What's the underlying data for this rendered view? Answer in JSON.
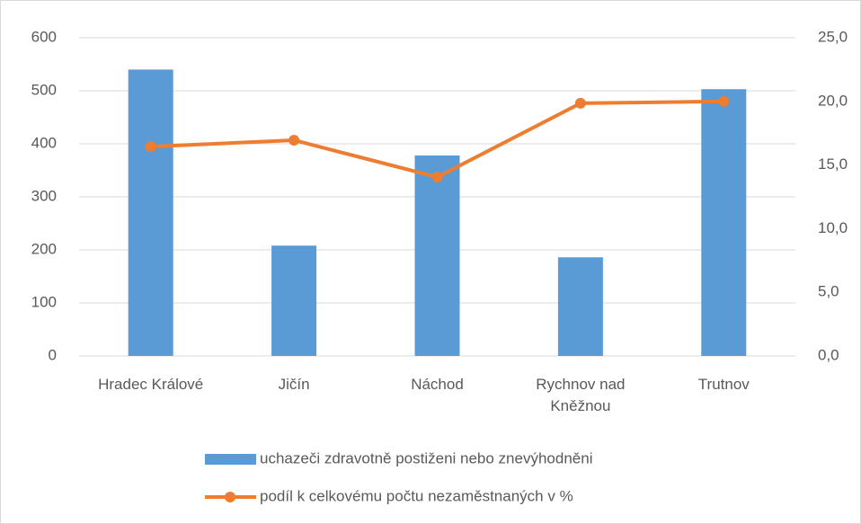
{
  "chart_data": {
    "type": "bar_line",
    "categories": [
      "Hradec Králové",
      "Jičín",
      "Náchod",
      "Rychnov nad Kněžnou",
      "Trutnov"
    ],
    "series": [
      {
        "name": "uchazeči zdravotně postiženi nebo znevýhodněni",
        "color": "#5b9bd5",
        "type": "bar",
        "values": [
          540,
          208,
          378,
          186,
          503
        ]
      },
      {
        "name": "podíl k celkovému počtu nezaměstnaných v %",
        "color": "#ed7d31",
        "type": "line",
        "axis": "y2",
        "values": [
          16.45,
          16.95,
          14.05,
          19.85,
          20.0
        ]
      }
    ],
    "ylim": [
      0,
      600
    ],
    "yticks": [
      0,
      100,
      200,
      300,
      400,
      500,
      600
    ],
    "y2lim": [
      0,
      25
    ],
    "y2ticks": [
      {
        "value": 0,
        "label": "0,0"
      },
      {
        "value": 5,
        "label": "5,0"
      },
      {
        "value": 10,
        "label": "10,0"
      },
      {
        "value": 15,
        "label": "15,0"
      },
      {
        "value": 20,
        "label": "20,0"
      },
      {
        "value": 25,
        "label": "25,0"
      }
    ],
    "grid": true,
    "legend": "bottom"
  }
}
